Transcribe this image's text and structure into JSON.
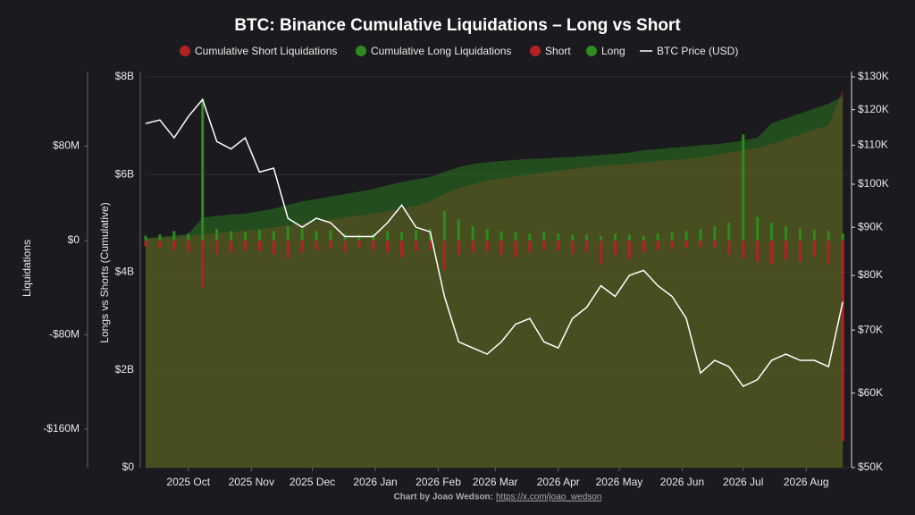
{
  "chart_data": {
    "type": "combo",
    "title": "BTC: Binance Cumulative Liquidations – Long vs Short",
    "ylabel": "Longs vs Shorts (Cumulative)",
    "y3label": "Liquidations",
    "footer": {
      "credit": "Chart by Joao Wedson:",
      "link": "https://x.com/joao_wedson"
    },
    "x": [
      "2025-09-10",
      "2025-09-17",
      "2025-09-24",
      "2025-10-01",
      "2025-10-08",
      "2025-10-15",
      "2025-10-22",
      "2025-10-29",
      "2025-11-05",
      "2025-11-12",
      "2025-11-19",
      "2025-11-26",
      "2025-12-03",
      "2025-12-10",
      "2025-12-17",
      "2025-12-24",
      "2025-12-31",
      "2026-01-07",
      "2026-01-14",
      "2026-01-21",
      "2026-01-28",
      "2026-02-04",
      "2026-02-11",
      "2026-02-18",
      "2026-02-25",
      "2026-03-04",
      "2026-03-11",
      "2026-03-18",
      "2026-03-25",
      "2026-04-01",
      "2026-04-08",
      "2026-04-15",
      "2026-04-22",
      "2026-04-29",
      "2026-05-06",
      "2026-05-13",
      "2026-05-20",
      "2026-05-27",
      "2026-06-03",
      "2026-06-10",
      "2026-06-17",
      "2026-06-24",
      "2026-07-01",
      "2026-07-08",
      "2026-07-15",
      "2026-07-22",
      "2026-07-29",
      "2026-08-05",
      "2026-08-12",
      "2026-08-19"
    ],
    "xlim": [
      "2025-09-10",
      "2026-08-22"
    ],
    "xticks": [
      {
        "value": "2025-10-01",
        "label": "2025 Oct"
      },
      {
        "value": "2025-11-01",
        "label": "2025 Nov"
      },
      {
        "value": "2025-12-01",
        "label": "2025 Dec"
      },
      {
        "value": "2026-01-01",
        "label": "2026 Jan"
      },
      {
        "value": "2026-02-01",
        "label": "2026 Feb"
      },
      {
        "value": "2026-03-01",
        "label": "2026 Mar"
      },
      {
        "value": "2026-04-01",
        "label": "2026 Apr"
      },
      {
        "value": "2026-05-01",
        "label": "2026 May"
      },
      {
        "value": "2026-06-01",
        "label": "2026 Jun"
      },
      {
        "value": "2026-07-01",
        "label": "2026 Jul"
      },
      {
        "value": "2026-08-01",
        "label": "2026 Aug"
      }
    ],
    "ylim": [
      0,
      8000000000.0
    ],
    "yticks": [
      {
        "value": 0,
        "label": "$0"
      },
      {
        "value": 2000000000.0,
        "label": "$2B"
      },
      {
        "value": 4000000000.0,
        "label": "$4B"
      },
      {
        "value": 6000000000.0,
        "label": "$6B"
      },
      {
        "value": 8000000000.0,
        "label": "$8B"
      }
    ],
    "y2lim": [
      50000,
      130000
    ],
    "y2log": true,
    "y2ticks": [
      {
        "value": 50000,
        "label": "$50K"
      },
      {
        "value": 60000,
        "label": "$60K"
      },
      {
        "value": 70000,
        "label": "$70K"
      },
      {
        "value": 80000,
        "label": "$80K"
      },
      {
        "value": 90000,
        "label": "$90K"
      },
      {
        "value": 100000,
        "label": "$100K"
      },
      {
        "value": 110000,
        "label": "$110K"
      },
      {
        "value": 120000,
        "label": "$120K"
      },
      {
        "value": 130000,
        "label": "$130K"
      }
    ],
    "y3lim": [
      -192600000,
      138800000
    ],
    "y3ticks": [
      {
        "value": -160000000,
        "label": "-$160M"
      },
      {
        "value": -80000000,
        "label": "-$80M"
      },
      {
        "value": 0,
        "label": "$0"
      },
      {
        "value": 80000000,
        "label": "$80M"
      }
    ],
    "series": [
      {
        "name": "Cumulative Short Liquidations",
        "type": "area",
        "axis": "y",
        "color": "#b22222",
        "values": [
          4680000000.0,
          4700000000.0,
          4720000000.0,
          4740000000.0,
          4780000000.0,
          4800000000.0,
          4820000000.0,
          4850000000.0,
          4880000000.0,
          4920000000.0,
          4960000000.0,
          5000000000.0,
          5040000000.0,
          5080000000.0,
          5120000000.0,
          5160000000.0,
          5200000000.0,
          5250000000.0,
          5300000000.0,
          5360000000.0,
          5450000000.0,
          5600000000.0,
          5720000000.0,
          5800000000.0,
          5880000000.0,
          5920000000.0,
          5960000000.0,
          6000000000.0,
          6040000000.0,
          6080000000.0,
          6120000000.0,
          6150000000.0,
          6180000000.0,
          6200000000.0,
          6220000000.0,
          6250000000.0,
          6280000000.0,
          6300000000.0,
          6320000000.0,
          6350000000.0,
          6400000000.0,
          6450000000.0,
          6500000000.0,
          6550000000.0,
          6620000000.0,
          6720000000.0,
          6820000000.0,
          6920000000.0,
          7000000000.0,
          7750000000.0
        ]
      },
      {
        "name": "Cumulative Long Liquidations",
        "type": "area",
        "axis": "y",
        "color": "#2e8b1f",
        "values": [
          4700000000.0,
          4720000000.0,
          4750000000.0,
          4780000000.0,
          5120000000.0,
          5150000000.0,
          5180000000.0,
          5200000000.0,
          5250000000.0,
          5300000000.0,
          5380000000.0,
          5450000000.0,
          5500000000.0,
          5550000000.0,
          5600000000.0,
          5650000000.0,
          5700000000.0,
          5780000000.0,
          5850000000.0,
          5900000000.0,
          5950000000.0,
          6050000000.0,
          6150000000.0,
          6220000000.0,
          6250000000.0,
          6280000000.0,
          6300000000.0,
          6320000000.0,
          6330000000.0,
          6350000000.0,
          6360000000.0,
          6380000000.0,
          6400000000.0,
          6420000000.0,
          6450000000.0,
          6500000000.0,
          6520000000.0,
          6550000000.0,
          6570000000.0,
          6600000000.0,
          6620000000.0,
          6650000000.0,
          6700000000.0,
          6750000000.0,
          7050000000.0,
          7150000000.0,
          7250000000.0,
          7350000000.0,
          7450000000.0,
          7600000000.0
        ]
      },
      {
        "name": "Short",
        "type": "bar",
        "axis": "y3",
        "color": "#b22222",
        "values": [
          -5000000.0,
          -6000000.0,
          -8000000.0,
          -10000000.0,
          -40000000.0,
          -12000000.0,
          -10000000.0,
          -8000000.0,
          -9000000.0,
          -12000000.0,
          -15000000.0,
          -10000000.0,
          -8000000.0,
          -7000000.0,
          -9000000.0,
          -6000000.0,
          -8000000.0,
          -10000000.0,
          -14000000.0,
          -9000000.0,
          -8000000.0,
          -25000000.0,
          -12000000.0,
          -10000000.0,
          -9000000.0,
          -12000000.0,
          -14000000.0,
          -10000000.0,
          -8000000.0,
          -9000000.0,
          -12000000.0,
          -10000000.0,
          -20000000.0,
          -12000000.0,
          -15000000.0,
          -10000000.0,
          -8000000.0,
          -7000000.0,
          -6000000.0,
          -5000000.0,
          -6000000.0,
          -12000000.0,
          -15000000.0,
          -18000000.0,
          -20000000.0,
          -16000000.0,
          -18000000.0,
          -14000000.0,
          -20000000.0,
          -170000000.0
        ]
      },
      {
        "name": "Long",
        "type": "bar",
        "axis": "y3",
        "color": "#2e8b1f",
        "values": [
          4000000.0,
          5000000.0,
          8000000.0,
          6000000.0,
          120000000.0,
          10000000.0,
          8000000.0,
          7000000.0,
          9000000.0,
          8000000.0,
          12000000.0,
          10000000.0,
          8000000.0,
          9000000.0,
          6000000.0,
          5000000.0,
          6000000.0,
          8000000.0,
          7000000.0,
          9000000.0,
          10000000.0,
          25000000.0,
          18000000.0,
          12000000.0,
          10000000.0,
          8000000.0,
          7000000.0,
          6000000.0,
          8000000.0,
          6000000.0,
          5000000.0,
          5000000.0,
          4000000.0,
          6000000.0,
          5000000.0,
          4000000.0,
          6000000.0,
          7000000.0,
          8000000.0,
          10000000.0,
          12000000.0,
          15000000.0,
          90000000.0,
          20000000.0,
          15000000.0,
          12000000.0,
          10000000.0,
          9000000.0,
          8000000.0,
          6000000.0
        ]
      },
      {
        "name": "BTC Price (USD)",
        "type": "line",
        "axis": "y2",
        "color": "#ffffff",
        "values": [
          116000,
          117000,
          112000,
          118000,
          123000,
          111000,
          109000,
          112000,
          103000,
          104000,
          92000,
          90000,
          92000,
          91000,
          88000,
          88000,
          88000,
          91000,
          95000,
          90000,
          89000,
          76000,
          68000,
          67000,
          66000,
          68000,
          71000,
          72000,
          68000,
          67000,
          72000,
          74000,
          78000,
          76000,
          80000,
          81000,
          78000,
          76000,
          72000,
          63000,
          65000,
          64000,
          61000,
          62000,
          65000,
          66000,
          65000,
          65000,
          64000,
          75000
        ]
      }
    ]
  }
}
